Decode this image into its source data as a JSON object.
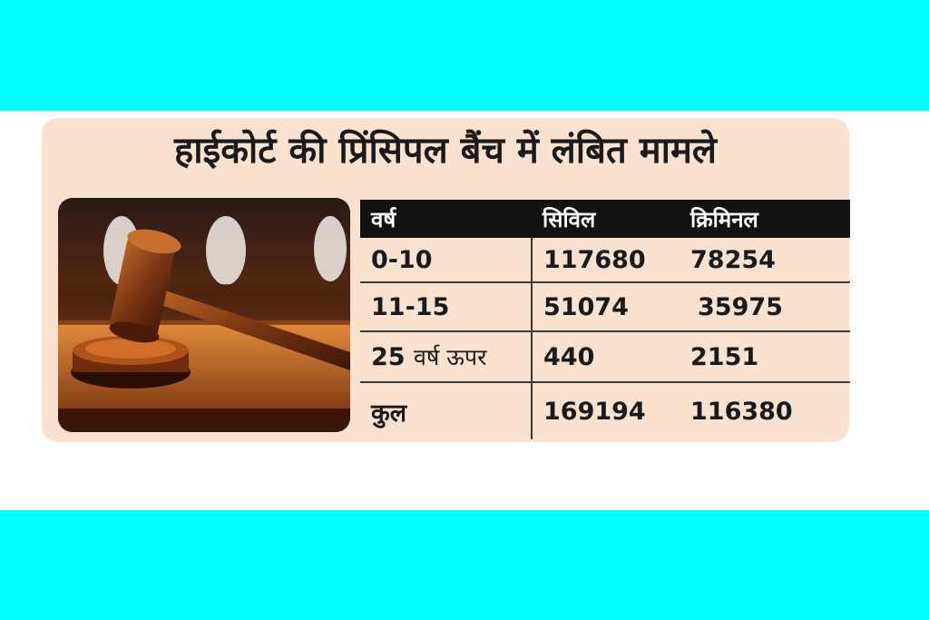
{
  "title": "हाईकोर्ट की प्रिंसिपल बैंच में लंबित मामले",
  "table": {
    "headers": [
      "वर्ष",
      "सिविल",
      "क्रिमिनल"
    ],
    "rows": [
      {
        "year": "0-10",
        "year_suffix": "",
        "civil": "117680",
        "criminal": "78254"
      },
      {
        "year": "11-15",
        "year_suffix": "",
        "civil": "51074",
        "criminal": "35975"
      },
      {
        "year": "25",
        "year_suffix": "वर्ष ऊपर",
        "civil": "440",
        "criminal": "2151"
      },
      {
        "year": "कुल",
        "year_suffix": "",
        "civil": "169194",
        "criminal": "116380"
      }
    ]
  },
  "colors": {
    "band": "#00ffff",
    "card_background": "#fbe2cf",
    "header_background": "#121212"
  },
  "icons": [
    "gavel-icon"
  ]
}
